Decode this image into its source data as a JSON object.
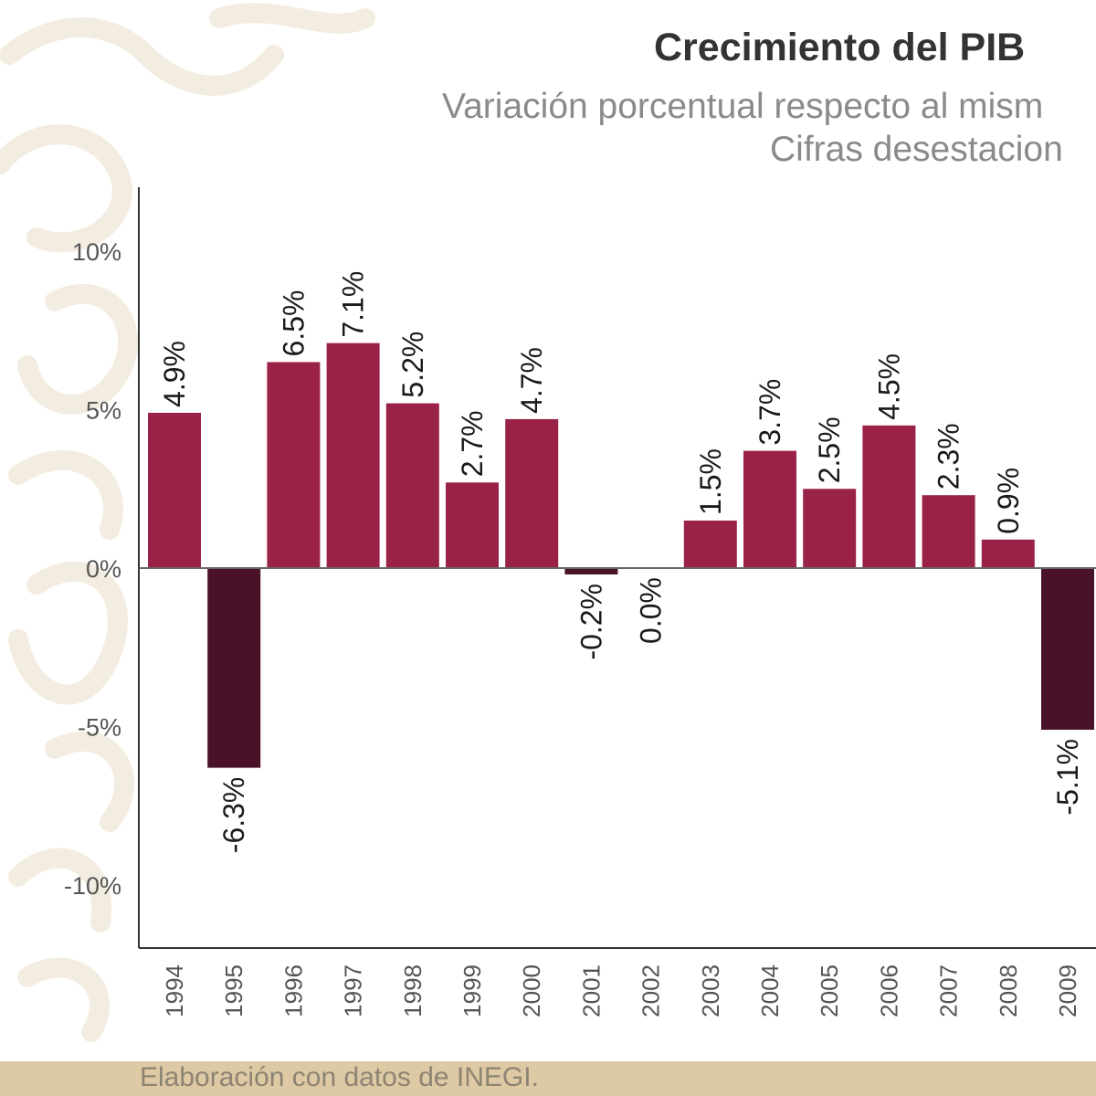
{
  "chart_data": {
    "type": "bar",
    "title": "Crecimiento del PIB",
    "subtitle": "Variación porcentual respecto al mism",
    "subtitle_line2": "Cifras desestacion",
    "categories": [
      "1994",
      "1995",
      "1996",
      "1997",
      "1998",
      "1999",
      "2000",
      "2001",
      "2002",
      "2003",
      "2004",
      "2005",
      "2006",
      "2007",
      "2008",
      "2009"
    ],
    "values": [
      4.9,
      -6.3,
      6.5,
      7.1,
      5.2,
      2.7,
      4.7,
      -0.2,
      0.0,
      1.5,
      3.7,
      2.5,
      4.5,
      2.3,
      0.9,
      -5.1
    ],
    "data_labels": [
      "4.9%",
      "-6.3%",
      "6.5%",
      "7.1%",
      "5.2%",
      "2.7%",
      "4.7%",
      "-0.2%",
      "0.0%",
      "1.5%",
      "3.7%",
      "2.5%",
      "4.5%",
      "2.3%",
      "0.9%",
      "-5.1%"
    ],
    "y_ticks": [
      10,
      5,
      0,
      -5,
      -10
    ],
    "y_tick_labels": [
      "10%",
      "5%",
      "0%",
      "-5%",
      "-10%"
    ],
    "ylim": [
      -12,
      12
    ],
    "grid": false,
    "colors": {
      "positive": "#9b2247",
      "negative": "#4a1228",
      "axis": "#333333",
      "text": "#1a1a1a",
      "tick_text": "#555555"
    }
  },
  "footer": {
    "source": "Elaboración con datos de INEGI."
  }
}
